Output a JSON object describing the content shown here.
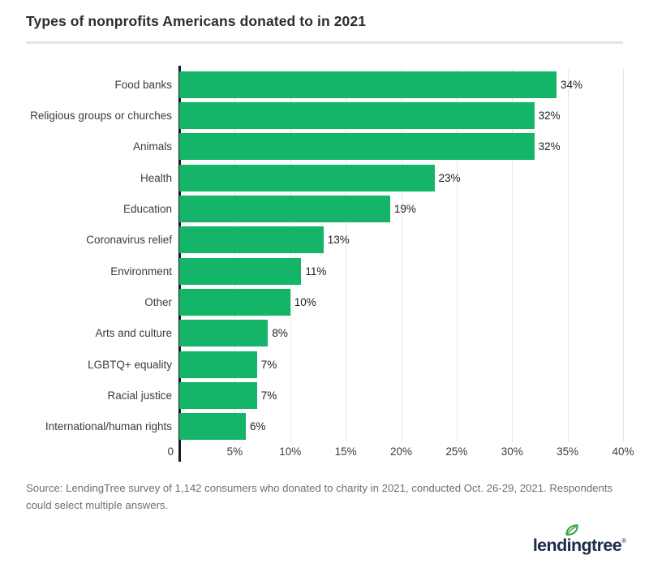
{
  "title": "Types of nonprofits Americans donated to in 2021",
  "chart_data": {
    "type": "bar",
    "orientation": "horizontal",
    "title": "Types of nonprofits Americans donated to in 2021",
    "categories": [
      "Food banks",
      "Religious groups or churches",
      "Animals",
      "Health",
      "Education",
      "Coronavirus relief",
      "Environment",
      "Other",
      "Arts and culture",
      "LGBTQ+ equality",
      "Racial justice",
      "International/human rights"
    ],
    "values": [
      34,
      32,
      32,
      23,
      19,
      13,
      11,
      10,
      8,
      7,
      7,
      6
    ],
    "value_labels": [
      "34%",
      "32%",
      "32%",
      "23%",
      "19%",
      "13%",
      "11%",
      "10%",
      "8%",
      "7%",
      "7%",
      "6%"
    ],
    "xlim": [
      0,
      40
    ],
    "x_tick_values": [
      0,
      5,
      10,
      15,
      20,
      25,
      30,
      35,
      40
    ],
    "x_tick_labels": [
      "0",
      "5%",
      "10%",
      "15%",
      "20%",
      "25%",
      "30%",
      "35%",
      "40%"
    ],
    "grid": true,
    "legend": false,
    "bar_color": "#14b469",
    "gridline_color": "#e5e5e5",
    "axis_color": "#1a1a1a"
  },
  "source": {
    "text": "Source: LendingTree survey of 1,142 consumers who donated to charity in 2021, conducted Oct. 26-29, 2021. Respondents could select multiple answers."
  },
  "footer": {
    "logo_text": "lendingtree",
    "registered_mark": "®",
    "logo_color": "#1b2b49",
    "leaf_color": "#2ea43e"
  }
}
